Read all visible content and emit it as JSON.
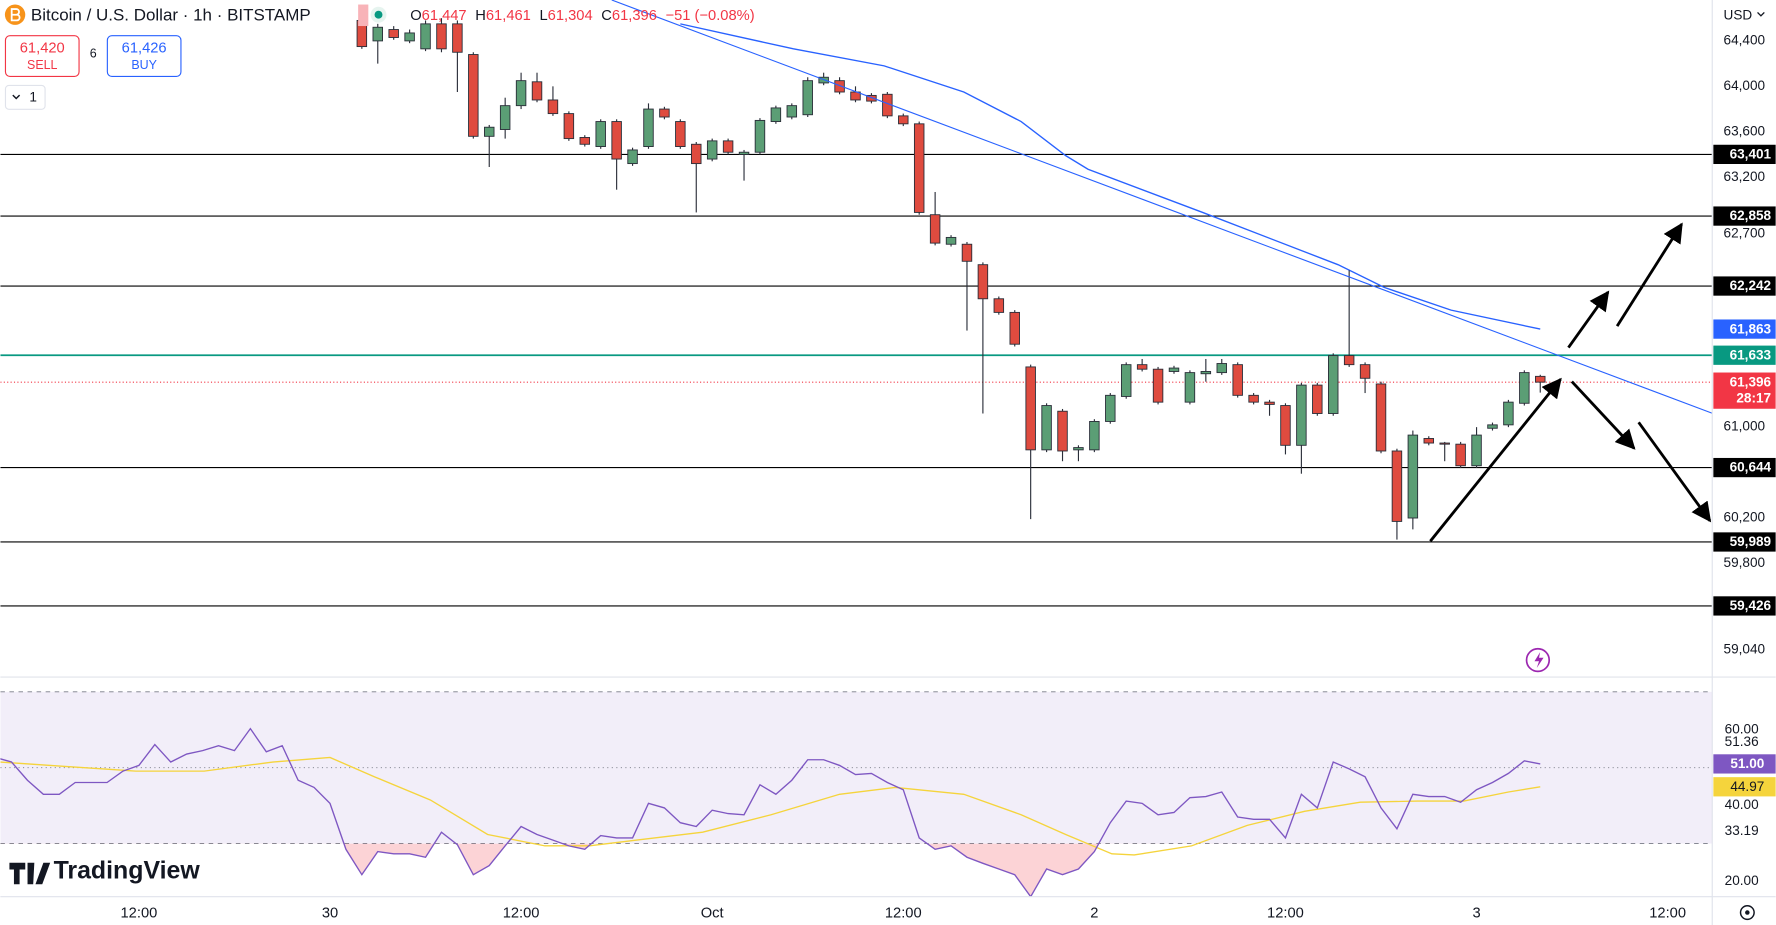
{
  "header": {
    "symbol_title": "Bitcoin / U.S. Dollar · 1h · BITSTAMP",
    "ohlc": [
      {
        "key": "O",
        "value": "61,447"
      },
      {
        "key": "H",
        "value": "61,461"
      },
      {
        "key": "L",
        "value": "61,304"
      },
      {
        "key": "C",
        "value": "61,396"
      }
    ],
    "change": "−51 (−0.08%)",
    "sell": {
      "price": "61,420",
      "label": "SELL"
    },
    "spread": "6",
    "buy": {
      "price": "61,426",
      "label": "BUY"
    },
    "interval_menu": "1",
    "currency": "USD",
    "logo": "TradingView"
  },
  "chart_data": {
    "type": "candlestick",
    "up_color": "#5b9e75",
    "down_color": "#df4b3f",
    "x": [
      2,
      3,
      4,
      5,
      6,
      7,
      8,
      9,
      10,
      11,
      12,
      13,
      14,
      15,
      16,
      17,
      18,
      19,
      20,
      21,
      22,
      23,
      24,
      25,
      26,
      27,
      28,
      29,
      30,
      31,
      32,
      33,
      34,
      35,
      36,
      37,
      38,
      39,
      40,
      41,
      42,
      43,
      44,
      45,
      46,
      47,
      48,
      49,
      50,
      51,
      52,
      53,
      54,
      55,
      56,
      57,
      58,
      59,
      60,
      61,
      62,
      63,
      64,
      65,
      66,
      67,
      68,
      69,
      70,
      71,
      72,
      73,
      74,
      75,
      76
    ],
    "open": [
      64580,
      64400,
      64500,
      64400,
      64330,
      64550,
      64550,
      64280,
      63560,
      63620,
      63830,
      64040,
      63880,
      63760,
      63550,
      63470,
      63690,
      63320,
      63470,
      63800,
      63690,
      63490,
      63360,
      63520,
      63400,
      63420,
      63690,
      63730,
      63750,
      64030,
      64050,
      63950,
      63920,
      63930,
      63740,
      63670,
      62870,
      62610,
      62610,
      62430,
      62130,
      62010,
      61530,
      60800,
      61140,
      60800,
      60800,
      61050,
      61270,
      61550,
      61510,
      61490,
      61220,
      61470,
      61480,
      61550,
      61280,
      61220,
      61190,
      60840,
      61370,
      61120,
      61630,
      61550,
      61380,
      60790,
      60200,
      60900,
      60860,
      60850,
      60660,
      60990,
      61020,
      61210,
      61447
    ],
    "high": [
      64700,
      64550,
      64530,
      64500,
      64580,
      64600,
      64580,
      64300,
      63660,
      63900,
      64120,
      64120,
      64000,
      63780,
      63570,
      63710,
      63710,
      63460,
      63850,
      63820,
      63710,
      63510,
      63540,
      63540,
      63440,
      63720,
      63830,
      63850,
      64080,
      64120,
      64080,
      64000,
      63940,
      63950,
      63760,
      63690,
      63070,
      62690,
      62630,
      62450,
      62150,
      62030,
      61550,
      61210,
      61160,
      60840,
      61070,
      61300,
      61570,
      61600,
      61530,
      61540,
      61500,
      61600,
      61600,
      61570,
      61300,
      61240,
      61210,
      61390,
      61390,
      61650,
      62380,
      61570,
      61400,
      60810,
      60970,
      60920,
      60870,
      60870,
      61000,
      61040,
      61240,
      61500,
      61461
    ],
    "low": [
      64330,
      64200,
      64410,
      64380,
      64310,
      64300,
      63950,
      63540,
      63290,
      63540,
      63800,
      63860,
      63740,
      63520,
      63470,
      63450,
      63090,
      63300,
      63450,
      63710,
      63450,
      62890,
      63340,
      63400,
      63170,
      63400,
      63670,
      63710,
      63730,
      64010,
      63930,
      63860,
      63850,
      63720,
      63650,
      62870,
      62600,
      62590,
      61850,
      61120,
      61990,
      61710,
      60190,
      60780,
      60700,
      60700,
      60780,
      61030,
      61250,
      61490,
      61200,
      61470,
      61200,
      61400,
      61460,
      61260,
      61200,
      61100,
      60760,
      60590,
      61100,
      61100,
      61530,
      61300,
      60770,
      60010,
      60100,
      60840,
      60700,
      60640,
      60640,
      60970,
      61000,
      61190,
      61304
    ],
    "close": [
      64350,
      64520,
      64430,
      64470,
      64550,
      64330,
      64300,
      63560,
      63640,
      63830,
      64050,
      63880,
      63760,
      63540,
      63490,
      63690,
      63360,
      63440,
      63800,
      63730,
      63470,
      63320,
      63520,
      63420,
      63420,
      63700,
      63810,
      63830,
      64050,
      64080,
      63950,
      63880,
      63870,
      63740,
      63670,
      62890,
      62620,
      62670,
      62460,
      62130,
      62010,
      61730,
      60800,
      61190,
      60790,
      60820,
      61050,
      61280,
      61550,
      61510,
      61220,
      61520,
      61480,
      61490,
      61560,
      61280,
      61220,
      61200,
      60840,
      61370,
      61120,
      61630,
      61550,
      61430,
      60790,
      60170,
      60930,
      60860,
      60850,
      60660,
      60930,
      61020,
      61220,
      61480,
      61396
    ],
    "xlim": [
      -20.7,
      86.8
    ],
    "xticks": [
      {
        "value": -12,
        "label": "12:00"
      },
      {
        "value": 0,
        "label": "30"
      },
      {
        "value": 12,
        "label": "12:00"
      },
      {
        "value": 24,
        "label": "Oct"
      },
      {
        "value": 36,
        "label": "12:00"
      },
      {
        "value": 48,
        "label": "2"
      },
      {
        "value": 60,
        "label": "12:00"
      },
      {
        "value": 72,
        "label": "3"
      },
      {
        "value": 84,
        "label": "12:00"
      }
    ],
    "ylim": [
      58810,
      64760
    ],
    "yticks": [
      {
        "value": 64400,
        "label": "64,400"
      },
      {
        "value": 64000,
        "label": "64,000"
      },
      {
        "value": 63600,
        "label": "63,600"
      },
      {
        "value": 63200,
        "label": "63,200"
      },
      {
        "value": 62700,
        "label": "62,700"
      },
      {
        "value": 61000,
        "label": "61,000"
      },
      {
        "value": 60200,
        "label": "60,200"
      },
      {
        "value": 59800,
        "label": "59,800"
      },
      {
        "value": 59040,
        "label": "59,040"
      }
    ],
    "levels": [
      {
        "value": 63401,
        "label": "63,401",
        "color": "#000000"
      },
      {
        "value": 62858,
        "label": "62,858",
        "color": "#000000"
      },
      {
        "value": 62242,
        "label": "62,242",
        "color": "#000000"
      },
      {
        "value": 61633,
        "label": "61,633",
        "color": "#089981"
      },
      {
        "value": 60644,
        "label": "60,644",
        "color": "#000000"
      },
      {
        "value": 59989,
        "label": "59,989",
        "color": "#000000"
      },
      {
        "value": 59426,
        "label": "59,426",
        "color": "#000000"
      }
    ],
    "last": {
      "value": 61396,
      "label": "61,396",
      "countdown": "28:17",
      "color": "#f23645"
    },
    "ma": {
      "color": "#2962ff",
      "x": [
        22.0,
        29.1,
        34.8,
        39.8,
        43.4,
        46.2,
        47.6,
        54.8,
        63.3,
        66.2,
        70.4,
        76
      ],
      "values": [
        64550,
        64330,
        64180,
        63950,
        63690,
        63390,
        63270,
        62890,
        62430,
        62230,
        62030,
        61863
      ],
      "last_label": "61,863"
    },
    "rsi": {
      "color": "#7e57c2",
      "x": [
        -21,
        -20,
        -19,
        -18,
        -17,
        -16,
        -15,
        -14,
        -13,
        -12,
        -11,
        -10,
        -9,
        -8,
        -7,
        -6,
        -5,
        -4,
        -3,
        -2,
        -1,
        0,
        1,
        2,
        3,
        4,
        5,
        6,
        7,
        8,
        9,
        10,
        11,
        12,
        13,
        14,
        15,
        16,
        17,
        18,
        19,
        20,
        21,
        22,
        23,
        24,
        25,
        26,
        27,
        28,
        29,
        30,
        31,
        32,
        33,
        34,
        35,
        36,
        37,
        38,
        39,
        40,
        41,
        42,
        43,
        44,
        45,
        46,
        47,
        48,
        49,
        50,
        51,
        52,
        53,
        54,
        55,
        56,
        57,
        58,
        59,
        60,
        61,
        62,
        63,
        64,
        65,
        66,
        67,
        68,
        69,
        70,
        71,
        72,
        73,
        74,
        75,
        76
      ],
      "values": [
        52.7,
        51.5,
        46.7,
        43.0,
        43.0,
        46.1,
        46.1,
        46.1,
        49.1,
        50.6,
        56.1,
        51.5,
        53.6,
        54.5,
        55.8,
        54.5,
        60.3,
        54.2,
        55.8,
        46.7,
        44.8,
        40.6,
        28.5,
        21.8,
        27.9,
        27.3,
        27.3,
        26.4,
        33.0,
        29.7,
        21.8,
        24.2,
        29.4,
        34.5,
        32.4,
        30.9,
        29.4,
        28.5,
        32.1,
        31.5,
        31.5,
        40.6,
        39.4,
        35.5,
        34.5,
        38.8,
        37.9,
        37.6,
        45.5,
        43.0,
        46.7,
        52.1,
        52.1,
        50.6,
        48.2,
        48.5,
        46.1,
        44.2,
        31.5,
        28.5,
        29.4,
        26.4,
        24.8,
        23.3,
        21.8,
        16.0,
        23.3,
        21.8,
        23.3,
        27.9,
        35.5,
        41.2,
        40.6,
        37.6,
        38.2,
        42.1,
        42.4,
        43.6,
        37.0,
        36.4,
        36.4,
        31.5,
        43.0,
        39.4,
        51.5,
        49.7,
        47.6,
        39.4,
        33.9,
        43.0,
        42.4,
        42.4,
        40.9,
        44.2,
        46.1,
        48.5,
        51.8,
        51.0
      ],
      "last_label": "51.00",
      "ma_color": "#f5d43c",
      "ma_x": [
        -20.7,
        -16.5,
        -12.2,
        -7.9,
        -3.6,
        0,
        2.8,
        6.3,
        9.9,
        13.5,
        16.3,
        19.2,
        23.4,
        27.7,
        32.0,
        35.5,
        39.8,
        43.4,
        46.2,
        49.1,
        50.5,
        54.1,
        57.6,
        61.2,
        64.7,
        68.3,
        71.2,
        74.0,
        76
      ],
      "ma_values": [
        51.5,
        50.3,
        49.1,
        49.1,
        51.5,
        52.7,
        47.6,
        41.5,
        32.4,
        29.4,
        29.4,
        30.9,
        33.0,
        37.6,
        43.0,
        44.8,
        43.0,
        37.6,
        32.4,
        27.3,
        27.0,
        29.4,
        34.8,
        38.5,
        40.9,
        41.2,
        41.2,
        43.6,
        44.97
      ],
      "ma_last_label": "44.97",
      "ylim": [
        16,
        73.3
      ],
      "yticks": [
        {
          "value": 60,
          "label": "60.00"
        },
        {
          "value": 51.36,
          "label": "51.36"
        },
        {
          "value": 40,
          "label": "40.00"
        },
        {
          "value": 33.19,
          "label": "33.19"
        },
        {
          "value": 20,
          "label": "20.00"
        }
      ],
      "bands": [
        70,
        50,
        30
      ]
    }
  }
}
